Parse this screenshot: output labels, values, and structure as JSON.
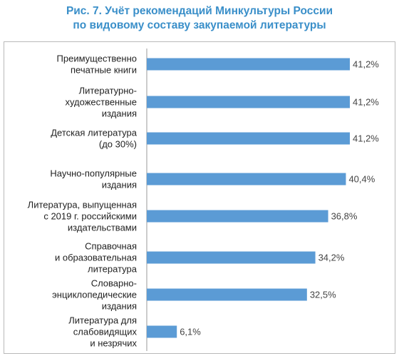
{
  "title": {
    "line1": "Рис. 7. Учёт рекомендаций Минкультуры России",
    "line2": "по видовому составу закупаемой литературы"
  },
  "colors": {
    "title": "#3a8fc9",
    "bar": "#5b9bd5",
    "axis": "#9a9a9a",
    "frame": "#b9b9b9"
  },
  "chart_data": {
    "type": "bar",
    "orientation": "horizontal",
    "categories": [
      [
        "Преимущественно",
        "печатные книги"
      ],
      [
        "Литературно-",
        "художественные",
        "издания"
      ],
      [
        "Детская литература",
        "(до 30%)"
      ],
      [
        "Научно-популярные",
        "издания"
      ],
      [
        "Литература, выпущенная",
        "с 2019 г. российскими",
        "издательствами"
      ],
      [
        "Справочная",
        "и образовательная",
        "литература"
      ],
      [
        "Словарно-",
        "энциклопедические",
        "издания"
      ],
      [
        "Литература для",
        "слабовидящих",
        "и незрячих"
      ]
    ],
    "values": [
      41.2,
      41.2,
      41.2,
      40.4,
      36.8,
      34.2,
      32.5,
      6.1
    ],
    "value_labels": [
      "41,2%",
      "41,2%",
      "41,2%",
      "40,4%",
      "36,8%",
      "34,2%",
      "32,5%",
      "6,1%"
    ],
    "xlim": [
      0,
      41.2
    ],
    "grid": false,
    "legend": "none"
  }
}
